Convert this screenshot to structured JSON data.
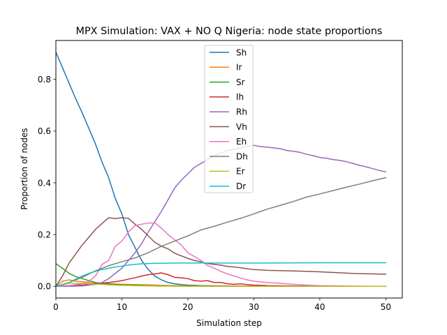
{
  "chart_data": {
    "type": "line",
    "title": "MPX Simulation: VAX + NO Q Nigeria: node state proportions",
    "xlabel": "Simulation step",
    "ylabel": "Proportion of nodes",
    "xlim": [
      0,
      52.5
    ],
    "ylim": [
      -0.045,
      0.95
    ],
    "xticks": [
      0,
      10,
      20,
      30,
      40,
      50
    ],
    "yticks": [
      0.0,
      0.2,
      0.4,
      0.6,
      0.8
    ],
    "xtick_labels": [
      "0",
      "10",
      "20",
      "30",
      "40",
      "50"
    ],
    "ytick_labels": [
      "0.0",
      "0.2",
      "0.4",
      "0.6",
      "0.8"
    ],
    "grid": false,
    "legend_position": "top-center",
    "series": [
      {
        "name": "Sh",
        "color": "#1f77b4",
        "x": [
          0,
          1,
          2,
          3,
          4,
          5,
          6,
          7,
          8,
          9,
          10,
          11,
          12,
          13,
          14,
          15,
          16,
          17,
          18,
          19,
          20,
          22,
          25,
          30,
          40,
          50
        ],
        "y": [
          0.905,
          0.845,
          0.785,
          0.725,
          0.67,
          0.61,
          0.55,
          0.48,
          0.42,
          0.34,
          0.28,
          0.2,
          0.15,
          0.1,
          0.065,
          0.04,
          0.025,
          0.015,
          0.01,
          0.007,
          0.005,
          0.003,
          0.002,
          0.001,
          0.0,
          0.0
        ]
      },
      {
        "name": "Ir",
        "color": "#ff7f0e",
        "x": [
          0,
          1,
          2,
          3,
          4,
          5,
          6,
          8,
          10,
          12,
          14,
          16,
          18,
          20,
          25,
          30,
          40,
          50
        ],
        "y": [
          0.0,
          0.02,
          0.025,
          0.02,
          0.018,
          0.015,
          0.012,
          0.01,
          0.008,
          0.007,
          0.006,
          0.004,
          0.003,
          0.002,
          0.001,
          0.001,
          0.0,
          0.0
        ]
      },
      {
        "name": "Sr",
        "color": "#2ca02c",
        "x": [
          0,
          1,
          2,
          3,
          4,
          5,
          6,
          7,
          8,
          9,
          10,
          12,
          14,
          16,
          18,
          20,
          25,
          30,
          40,
          50
        ],
        "y": [
          0.088,
          0.07,
          0.05,
          0.038,
          0.03,
          0.022,
          0.015,
          0.012,
          0.01,
          0.008,
          0.006,
          0.005,
          0.003,
          0.002,
          0.001,
          0.001,
          0.0,
          0.0,
          0.0,
          0.0
        ]
      },
      {
        "name": "Ih",
        "color": "#d62728",
        "x": [
          0,
          2,
          4,
          5,
          6,
          7,
          8,
          9,
          10,
          11,
          12,
          13,
          14,
          15,
          16,
          17,
          18,
          19,
          20,
          21,
          22,
          23,
          24,
          25,
          26,
          27,
          28,
          29,
          30,
          32,
          35,
          40,
          45,
          50
        ],
        "y": [
          0.0,
          0.003,
          0.005,
          0.008,
          0.01,
          0.012,
          0.015,
          0.018,
          0.022,
          0.028,
          0.033,
          0.04,
          0.045,
          0.048,
          0.052,
          0.045,
          0.035,
          0.033,
          0.03,
          0.022,
          0.02,
          0.022,
          0.015,
          0.015,
          0.01,
          0.008,
          0.01,
          0.007,
          0.005,
          0.003,
          0.002,
          0.001,
          0.0,
          0.0
        ]
      },
      {
        "name": "Rh",
        "color": "#9467bd",
        "x": [
          0,
          2,
          4,
          6,
          7,
          8,
          9,
          10,
          11,
          12,
          13,
          14,
          15,
          16,
          17,
          18,
          19,
          20,
          21,
          22,
          23,
          24,
          25,
          26,
          27,
          28,
          29,
          30,
          31,
          32,
          33,
          34,
          35,
          36,
          37,
          38,
          39,
          40,
          41,
          42,
          43,
          44,
          45,
          46,
          47,
          48,
          49,
          50
        ],
        "y": [
          0.0,
          0.0,
          0.002,
          0.008,
          0.015,
          0.03,
          0.05,
          0.07,
          0.1,
          0.13,
          0.165,
          0.21,
          0.25,
          0.29,
          0.335,
          0.38,
          0.41,
          0.435,
          0.46,
          0.475,
          0.49,
          0.505,
          0.515,
          0.525,
          0.53,
          0.535,
          0.54,
          0.545,
          0.54,
          0.538,
          0.535,
          0.532,
          0.525,
          0.522,
          0.518,
          0.51,
          0.505,
          0.498,
          0.495,
          0.49,
          0.487,
          0.482,
          0.475,
          0.468,
          0.462,
          0.455,
          0.448,
          0.442
        ]
      },
      {
        "name": "Vh",
        "color": "#8c564b",
        "x": [
          0,
          1,
          2,
          3,
          4,
          5,
          6,
          7,
          8,
          9,
          10,
          11,
          12,
          13,
          14,
          15,
          16,
          17,
          18,
          19,
          20,
          21,
          22,
          23,
          24,
          25,
          26,
          27,
          28,
          29,
          30,
          32,
          35,
          38,
          40,
          45,
          50
        ],
        "y": [
          0.0,
          0.04,
          0.09,
          0.125,
          0.16,
          0.19,
          0.22,
          0.243,
          0.265,
          0.262,
          0.265,
          0.263,
          0.24,
          0.22,
          0.195,
          0.17,
          0.155,
          0.145,
          0.128,
          0.118,
          0.108,
          0.1,
          0.095,
          0.088,
          0.085,
          0.082,
          0.077,
          0.075,
          0.072,
          0.068,
          0.065,
          0.062,
          0.06,
          0.058,
          0.056,
          0.05,
          0.047
        ]
      },
      {
        "name": "Eh",
        "color": "#e377c2",
        "x": [
          0,
          2,
          4,
          5,
          6,
          7,
          8,
          9,
          10,
          11,
          12,
          13,
          14,
          15,
          16,
          17,
          18,
          19,
          20,
          21,
          22,
          23,
          24,
          25,
          26,
          27,
          28,
          29,
          30,
          32,
          34,
          36,
          38,
          40,
          45,
          50
        ],
        "y": [
          0.0,
          0.003,
          0.01,
          0.02,
          0.04,
          0.085,
          0.1,
          0.155,
          0.175,
          0.21,
          0.235,
          0.24,
          0.245,
          0.245,
          0.225,
          0.2,
          0.18,
          0.16,
          0.13,
          0.115,
          0.1,
          0.08,
          0.07,
          0.058,
          0.048,
          0.04,
          0.032,
          0.025,
          0.02,
          0.015,
          0.012,
          0.008,
          0.005,
          0.003,
          0.001,
          0.0
        ]
      },
      {
        "name": "Dh",
        "color": "#7f7f7f",
        "x": [
          0,
          2,
          4,
          6,
          8,
          10,
          12,
          14,
          16,
          18,
          20,
          22,
          24,
          26,
          28,
          30,
          32,
          34,
          36,
          38,
          40,
          42,
          44,
          46,
          48,
          50
        ],
        "y": [
          0.0,
          0.015,
          0.035,
          0.06,
          0.08,
          0.095,
          0.11,
          0.13,
          0.155,
          0.175,
          0.195,
          0.218,
          0.232,
          0.248,
          0.263,
          0.28,
          0.298,
          0.313,
          0.328,
          0.345,
          0.357,
          0.37,
          0.383,
          0.395,
          0.408,
          0.42
        ]
      },
      {
        "name": "Er",
        "color": "#bcbd22",
        "x": [
          0,
          1,
          2,
          3,
          4,
          5,
          6,
          7,
          8,
          9,
          10,
          12,
          14,
          16,
          18,
          20,
          25,
          30,
          40,
          50
        ],
        "y": [
          0.0,
          0.008,
          0.012,
          0.012,
          0.012,
          0.01,
          0.008,
          0.008,
          0.006,
          0.005,
          0.004,
          0.003,
          0.002,
          0.001,
          0.001,
          0.0,
          0.0,
          0.0,
          0.0,
          0.0
        ]
      },
      {
        "name": "Dr",
        "color": "#17becf",
        "x": [
          0,
          1,
          2,
          3,
          4,
          5,
          6,
          7,
          8,
          9,
          10,
          11,
          12,
          13,
          14,
          15,
          16,
          18,
          20,
          25,
          30,
          40,
          50
        ],
        "y": [
          0.0,
          0.005,
          0.015,
          0.028,
          0.04,
          0.05,
          0.058,
          0.065,
          0.07,
          0.075,
          0.078,
          0.082,
          0.085,
          0.087,
          0.088,
          0.089,
          0.089,
          0.09,
          0.09,
          0.09,
          0.09,
          0.091,
          0.091
        ]
      }
    ]
  }
}
